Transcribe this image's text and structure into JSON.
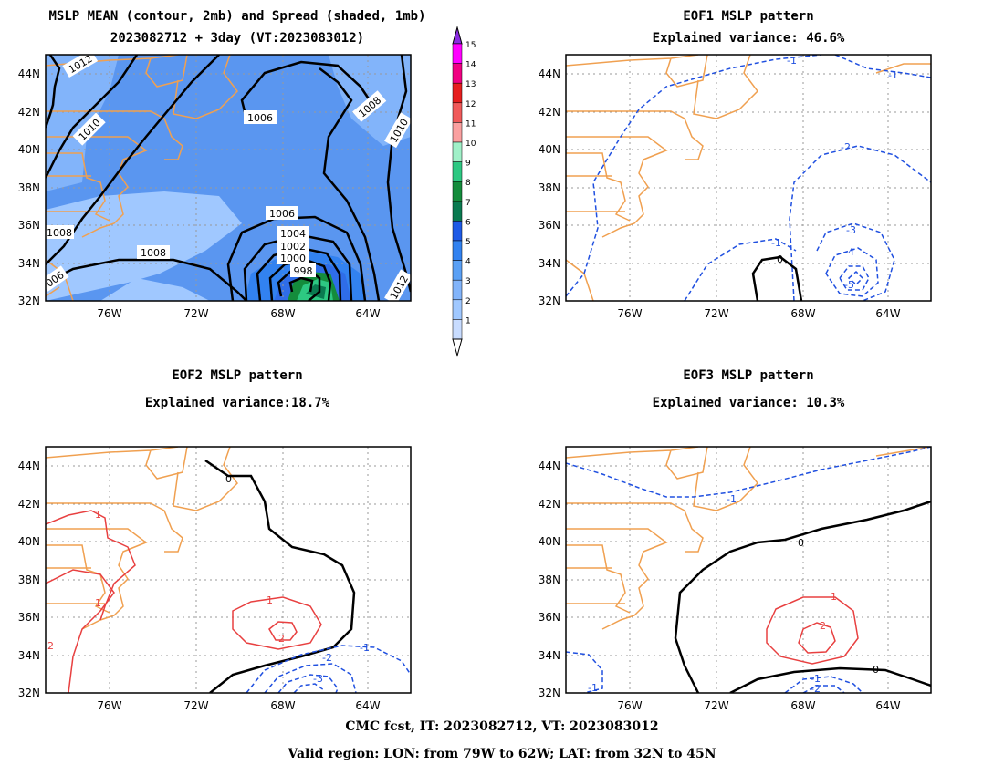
{
  "panels": {
    "mean": {
      "title_line1": "MSLP MEAN (contour, 2mb) and Spread (shaded, 1mb)",
      "title_line2": "2023082712 + 3day (VT:2023083012)",
      "contour_labels": [
        "1012",
        "1010",
        "1006",
        "1008",
        "1010",
        "1008",
        "1006",
        "1004",
        "1002",
        "1000",
        "998",
        "1008",
        "006",
        "1012"
      ],
      "colorbar_levels": [
        "15",
        "14",
        "13",
        "12",
        "11",
        "10",
        "9",
        "8",
        "7",
        "6",
        "5",
        "4",
        "3",
        "2",
        "1"
      ],
      "colorbar_colors": [
        "#ff00ff",
        "#f00082",
        "#e61e1e",
        "#f05a5a",
        "#faa0a0",
        "#a0f0c8",
        "#2dc882",
        "#148c3c",
        "#0a7a50",
        "#1e5ae6",
        "#3282f0",
        "#5aa0f5",
        "#82b4fa",
        "#a0c8ff",
        "#c8dcff"
      ]
    },
    "eof1": {
      "title_line1": "EOF1 MSLP pattern",
      "title_line2": "Explained variance: 46.6%",
      "contour_labels": [
        "-1",
        "-1",
        "-2",
        "-1",
        "0",
        "-3",
        "-4",
        "-5"
      ]
    },
    "eof2": {
      "title_line1": "EOF2 MSLP pattern",
      "title_line2": "Explained variance:18.7%",
      "contour_labels": [
        "0",
        "1",
        "1",
        "1",
        "2",
        "2",
        "-1",
        "-2",
        "-3"
      ]
    },
    "eof3": {
      "title_line1": "EOF3 MSLP pattern",
      "title_line2": "Explained variance: 10.3%",
      "contour_labels": [
        "-1",
        "0",
        "1",
        "2",
        "0",
        "-1",
        "-2",
        "-1"
      ]
    }
  },
  "axes": {
    "lat_labels": [
      "44N",
      "42N",
      "40N",
      "38N",
      "36N",
      "34N",
      "32N"
    ],
    "lon_labels": [
      "76W",
      "72W",
      "68W",
      "64W"
    ]
  },
  "colors": {
    "coast": "#f0a050",
    "positive": "#e84040",
    "negative": "#2050e0",
    "zero": "#000000"
  },
  "footer": {
    "line1": "CMC fcst, IT: 2023082712, VT: 2023083012",
    "line2": "Valid region: LON: from 79W to 62W; LAT: from 32N to 45N"
  }
}
